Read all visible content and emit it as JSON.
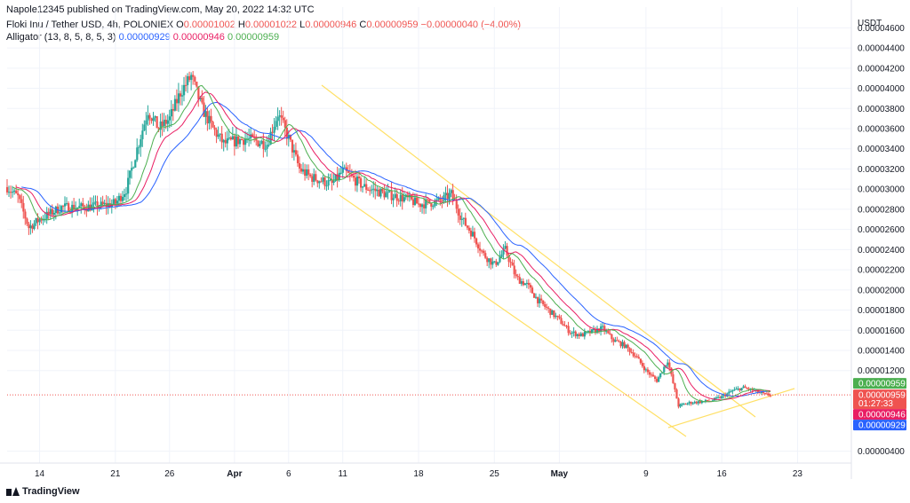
{
  "header": {
    "published_text": "Napole12345 published on TradingView.com, May 20, 2022 14:32 UTC"
  },
  "legend": {
    "symbol": "Floki Inu / Tether USD, 4h, POLONIEX",
    "o_label": "O",
    "o_value": "0.00001002",
    "h_label": "H",
    "h_value": "0.00001022",
    "l_label": "L",
    "l_value": "0.00000946",
    "c_label": "C",
    "c_value": "0.00000959",
    "change": "−0.00000040 (−4.00%)",
    "indicator": "Alligator (13, 8, 5, 8, 5, 3)",
    "jaw": "0.00000929",
    "teeth": "0.00000946",
    "lips": "0.00000959"
  },
  "footer": {
    "brand": "TradingView"
  },
  "colors": {
    "up": "#26a69a",
    "down": "#ef5350",
    "jaw": "#2962ff",
    "teeth": "#e91e63",
    "lips": "#4caf50",
    "channel": "#ffe066",
    "price_tag": "#ef5350",
    "lips_tag": "#4caf50",
    "teeth_tag": "#e91e63",
    "jaw_tag": "#2962ff"
  },
  "chart_data": {
    "type": "candlestick",
    "currency": "USDT",
    "y_ticks": [
      "0.00004600",
      "0.00004400",
      "0.00004200",
      "0.00004000",
      "0.00003800",
      "0.00003600",
      "0.00003400",
      "0.00003200",
      "0.00003000",
      "0.00002800",
      "0.00002600",
      "0.00002400",
      "0.00002200",
      "0.00002000",
      "0.00001800",
      "0.00001600",
      "0.00001400",
      "0.00001200",
      "0.00000400"
    ],
    "ylim": [
      3e-06,
      4.7e-05
    ],
    "x_ticks": [
      "14",
      "21",
      "26",
      "Apr",
      "6",
      "11",
      "18",
      "25",
      "May",
      "9",
      "16",
      "23"
    ],
    "last_price": "0.00000959",
    "countdown": "01:27:33",
    "lips_value": "0.00000959",
    "teeth_value": "0.00000946",
    "jaw_value": "0.00000929",
    "price_path": [
      [
        "2022-03-11",
        3.02e-05
      ],
      [
        "2022-03-12",
        2.92e-05
      ],
      [
        "2022-03-13",
        2.62e-05
      ],
      [
        "2022-03-14",
        2.7e-05
      ],
      [
        "2022-03-16",
        2.82e-05
      ],
      [
        "2022-03-18",
        2.82e-05
      ],
      [
        "2022-03-20",
        2.84e-05
      ],
      [
        "2022-03-21",
        2.86e-05
      ],
      [
        "2022-03-22",
        3e-05
      ],
      [
        "2022-03-23",
        3.4e-05
      ],
      [
        "2022-03-24",
        3.78e-05
      ],
      [
        "2022-03-25",
        3.6e-05
      ],
      [
        "2022-03-26",
        3.7e-05
      ],
      [
        "2022-03-27",
        3.96e-05
      ],
      [
        "2022-03-28",
        4.12e-05
      ],
      [
        "2022-03-29",
        3.8e-05
      ],
      [
        "2022-03-30",
        3.6e-05
      ],
      [
        "2022-03-31",
        3.45e-05
      ],
      [
        "2022-04-02",
        3.5e-05
      ],
      [
        "2022-04-04",
        3.45e-05
      ],
      [
        "2022-04-05",
        3.75e-05
      ],
      [
        "2022-04-06",
        3.5e-05
      ],
      [
        "2022-04-07",
        3.2e-05
      ],
      [
        "2022-04-08",
        3.12e-05
      ],
      [
        "2022-04-10",
        3.05e-05
      ],
      [
        "2022-04-11",
        3.18e-05
      ],
      [
        "2022-04-13",
        3.02e-05
      ],
      [
        "2022-04-15",
        2.95e-05
      ],
      [
        "2022-04-17",
        2.9e-05
      ],
      [
        "2022-04-18",
        2.85e-05
      ],
      [
        "2022-04-20",
        2.88e-05
      ],
      [
        "2022-04-21",
        2.95e-05
      ],
      [
        "2022-04-22",
        2.7e-05
      ],
      [
        "2022-04-23",
        2.55e-05
      ],
      [
        "2022-04-24",
        2.35e-05
      ],
      [
        "2022-04-25",
        2.25e-05
      ],
      [
        "2022-04-26",
        2.4e-05
      ],
      [
        "2022-04-27",
        2.12e-05
      ],
      [
        "2022-04-28",
        2.05e-05
      ],
      [
        "2022-04-29",
        1.9e-05
      ],
      [
        "2022-04-30",
        1.8e-05
      ],
      [
        "2022-05-01",
        1.7e-05
      ],
      [
        "2022-05-02",
        1.58e-05
      ],
      [
        "2022-05-03",
        1.55e-05
      ],
      [
        "2022-05-05",
        1.62e-05
      ],
      [
        "2022-05-06",
        1.5e-05
      ],
      [
        "2022-05-07",
        1.45e-05
      ],
      [
        "2022-05-08",
        1.35e-05
      ],
      [
        "2022-05-09",
        1.2e-05
      ],
      [
        "2022-05-10",
        1.1e-05
      ],
      [
        "2022-05-11",
        1.3e-05
      ],
      [
        "2022-05-12",
        8.5e-06
      ],
      [
        "2022-05-13",
        8.8e-06
      ],
      [
        "2022-05-15",
        9e-06
      ],
      [
        "2022-05-16",
        9.4e-06
      ],
      [
        "2022-05-17",
        1e-05
      ],
      [
        "2022-05-18",
        1.03e-05
      ],
      [
        "2022-05-19",
        1e-05
      ],
      [
        "2022-05-20",
        9.6e-06
      ]
    ]
  }
}
